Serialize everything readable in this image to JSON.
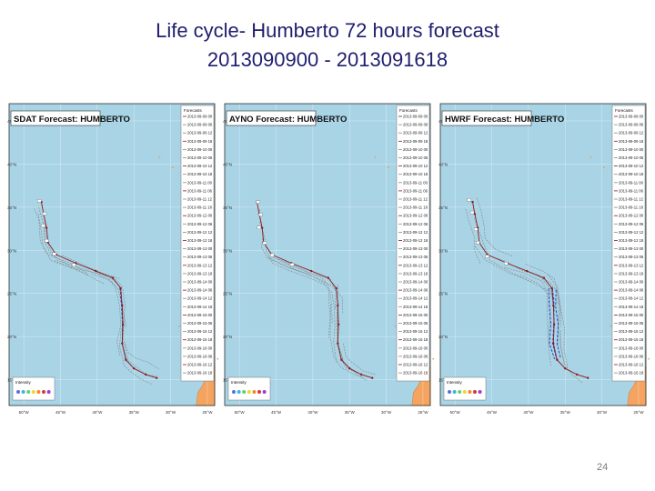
{
  "title": {
    "line1": "Life cycle- Humberto 72 hours forecast",
    "line2": "2013090900 - 2013091618"
  },
  "page_number": "24",
  "colors": {
    "ocean": "#a8d4e6",
    "land": "#f4a460",
    "frame": "#2d2d2d",
    "best_track": "#8b1a1a",
    "forecast_track": "#888888",
    "ensemble_blue": "#1f3fbf"
  },
  "panels": [
    {
      "id": "sdat",
      "heading": "SDAT Forecast: HUMBERTO",
      "blue_segments": 1
    },
    {
      "id": "ayno",
      "heading": "AYNO Forecast: HUMBERTO",
      "blue_segments": 0
    },
    {
      "id": "hwrf",
      "heading": "HWRF Forecast: HUMBERTO",
      "blue_segments": 3
    }
  ],
  "legend_title": "Forecasts",
  "legend_entries": [
    "2013-09-09 00",
    "2013-09-09 06",
    "2013-09-09 12",
    "2013-09-09 18",
    "2013-09-10 00",
    "2013-09-10 06",
    "2013-09-10 12",
    "2013-09-10 18",
    "2013-09-11 00",
    "2013-09-11 06",
    "2013-09-11 12",
    "2013-09-11 18",
    "2013-09-12 00",
    "2013-09-12 06",
    "2013-09-12 12",
    "2013-09-12 18",
    "2013-09-13 00",
    "2013-09-13 06",
    "2013-09-13 12",
    "2013-09-13 18",
    "2013-09-14 00",
    "2013-09-14 06",
    "2013-09-14 12",
    "2013-09-14 18",
    "2013-09-15 00",
    "2013-09-15 06",
    "2013-09-15 12",
    "2013-09-15 18",
    "2013-09-16 00",
    "2013-09-16 06",
    "2013-09-16 12",
    "2013-09-16 18"
  ],
  "lat_labels": [
    "45°N",
    "40°N",
    "35°N",
    "30°N",
    "25°N",
    "20°N",
    "15°N"
  ],
  "lon_labels": [
    "50°W",
    "45°W",
    "40°W",
    "35°W",
    "30°W",
    "25°W"
  ],
  "intensity_label": "Intensity",
  "best_track": [
    {
      "lon": -47.6,
      "lat": 35.6
    },
    {
      "lon": -47.3,
      "lat": 34.2
    },
    {
      "lon": -46.9,
      "lat": 32.6
    },
    {
      "lon": -46.7,
      "lat": 30.9
    },
    {
      "lon": -45.6,
      "lat": 29.5
    },
    {
      "lon": -42.9,
      "lat": 28.5
    },
    {
      "lon": -40.2,
      "lat": 27.6
    },
    {
      "lon": -37.9,
      "lat": 26.8
    },
    {
      "lon": -36.8,
      "lat": 25.6
    },
    {
      "lon": -36.6,
      "lat": 23.6
    },
    {
      "lon": -36.5,
      "lat": 21.4
    },
    {
      "lon": -36.6,
      "lat": 19.2
    },
    {
      "lon": -36.1,
      "lat": 17.3
    },
    {
      "lon": -35.0,
      "lat": 16.3
    },
    {
      "lon": -33.4,
      "lat": 15.6
    },
    {
      "lon": -31.9,
      "lat": 15.2
    }
  ]
}
